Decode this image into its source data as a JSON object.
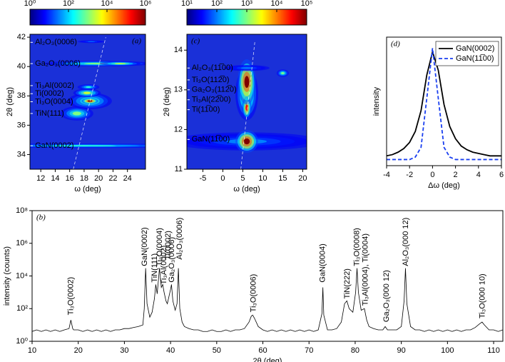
{
  "chart_data": [
    {
      "type": "heatmap",
      "panel_label": "(a)",
      "xlabel": "ω (deg)",
      "ylabel": "2θ (deg)",
      "xlim": [
        10.5,
        26.5
      ],
      "xticks": [
        12,
        14,
        16,
        18,
        20,
        22,
        24
      ],
      "ylim": [
        33,
        42.2
      ],
      "yticks": [
        34,
        36,
        38,
        40,
        42
      ],
      "colorbar": {
        "log": true,
        "lim": [
          1,
          1000000
        ],
        "ticks": [
          {
            "value": 1,
            "label": "10⁰"
          },
          {
            "value": 100,
            "label": "10²"
          },
          {
            "value": 10000,
            "label": "10⁴"
          },
          {
            "value": 1000000,
            "label": "10⁶"
          }
        ]
      },
      "spots": [
        {
          "x": 18,
          "y": 34.6,
          "wx": 9,
          "wy": 0.08,
          "value": 300
        },
        {
          "x": 17,
          "y": 36.8,
          "wx": 1.2,
          "wy": 0.25,
          "value": 1000
        },
        {
          "x": 18.8,
          "y": 37.65,
          "wx": 1.6,
          "wy": 0.3,
          "value": 1000
        },
        {
          "x": 18.8,
          "y": 37.65,
          "wx": 0.6,
          "wy": 0.1,
          "value": 1000000
        },
        {
          "x": 18.4,
          "y": 38.2,
          "wx": 1,
          "wy": 0.15,
          "value": 3000
        },
        {
          "x": 18.6,
          "y": 38.6,
          "wx": 0.8,
          "wy": 0.1,
          "value": 300
        },
        {
          "x": 20,
          "y": 40.2,
          "wx": 4,
          "wy": 0.1,
          "value": 1000
        },
        {
          "x": 23,
          "y": 40.2,
          "wx": 1.5,
          "wy": 0.08,
          "value": 3000
        },
        {
          "x": 19,
          "y": 41.7,
          "wx": 1,
          "wy": 0.05,
          "value": 30
        }
      ],
      "guide_line": {
        "x": [
          16.5,
          21
        ],
        "y": [
          33,
          42
        ]
      },
      "annotations": [
        {
          "text": "Al₂O₃(0006)",
          "x": 11.2,
          "y": 41.65,
          "color": "#f2c230"
        },
        {
          "text": "Ga₂O₃(0006)",
          "x": 11.2,
          "y": 40.2,
          "color": "#ffffff"
        },
        {
          "text": "Ti₃Al(0002)",
          "x": 11.2,
          "y": 38.7,
          "color": "#ffffff"
        },
        {
          "text": "Ti(0002)",
          "x": 11.2,
          "y": 38.15,
          "color": "#ffffff"
        },
        {
          "text": "Ti₃O(0004)",
          "x": 11.2,
          "y": 37.6,
          "color": "#ffffff"
        },
        {
          "text": "TiN(111)",
          "x": 11.2,
          "y": 36.8,
          "color": "#ffffff"
        },
        {
          "text": "GaN(0002)",
          "x": 11.2,
          "y": 34.6,
          "color": "#f2c230"
        }
      ]
    },
    {
      "type": "heatmap",
      "panel_label": "(c)",
      "xlabel": "ω (deg)",
      "ylabel": "2θ (deg)",
      "xlim": [
        -9,
        21
      ],
      "xticks": [
        -5,
        0,
        5,
        10,
        15,
        20
      ],
      "ylim": [
        11,
        14.4
      ],
      "yticks": [
        11,
        12,
        13,
        14
      ],
      "colorbar": {
        "log": true,
        "lim": [
          10,
          100000
        ],
        "ticks": [
          {
            "value": 10,
            "label": "10¹"
          },
          {
            "value": 100,
            "label": "10²"
          },
          {
            "value": 1000,
            "label": "10³"
          },
          {
            "value": 10000,
            "label": "10⁴"
          },
          {
            "value": 100000,
            "label": "10⁵"
          }
        ]
      },
      "spots": [
        {
          "x": 6,
          "y": 11.7,
          "wx": 10,
          "wy": 0.12,
          "value": 100
        },
        {
          "x": 6,
          "y": 11.7,
          "wx": 1.5,
          "wy": 0.15,
          "value": 100000
        },
        {
          "x": 6,
          "y": 12.9,
          "wx": 1.5,
          "wy": 0.35,
          "value": 3000
        },
        {
          "x": 6,
          "y": 12.55,
          "wx": 0.6,
          "wy": 0.15,
          "value": 30000
        },
        {
          "x": 6,
          "y": 13.2,
          "wx": 1.2,
          "wy": 0.3,
          "value": 100000
        },
        {
          "x": 6,
          "y": 13.55,
          "wx": 3,
          "wy": 0.04,
          "value": 100
        },
        {
          "x": 15,
          "y": 13.42,
          "wx": 0.8,
          "wy": 0.05,
          "value": 1000
        }
      ],
      "guide_line": {
        "x": [
          4.5,
          8
        ],
        "y": [
          11,
          14.2
        ]
      },
      "annotations": [
        {
          "text": "Al₂O₃(11̅00)",
          "x": -7.8,
          "y": 13.55,
          "color": "#f2c230"
        },
        {
          "text": "Ti₃O(112̅0)",
          "x": -7.8,
          "y": 13.25,
          "color": "#ffffff"
        },
        {
          "text": "Ga₂O₃(112̅0)",
          "x": -7.8,
          "y": 13.0,
          "color": "#ffffff"
        },
        {
          "text": "Ti₃Al(22̅00)",
          "x": -7.8,
          "y": 12.75,
          "color": "#ffffff"
        },
        {
          "text": "Ti(11̅00)",
          "x": -7.8,
          "y": 12.5,
          "color": "#ffffff"
        },
        {
          "text": "GaN(11̅00)",
          "x": -7.8,
          "y": 11.75,
          "color": "#f2c230"
        }
      ]
    },
    {
      "type": "line",
      "panel_label": "(d)",
      "xlabel": "Δω (deg)",
      "ylabel": "intensity",
      "xlim": [
        -4,
        6
      ],
      "xticks": [
        -4,
        -2,
        0,
        2,
        4,
        6
      ],
      "ylim": [
        0,
        1.05
      ],
      "legend": "upper-right",
      "x": [
        -4,
        -3.5,
        -3,
        -2.5,
        -2,
        -1.5,
        -1,
        -0.5,
        0,
        0.5,
        1,
        1.5,
        2,
        2.5,
        3,
        3.5,
        4,
        4.5,
        5,
        5.5,
        6
      ],
      "series": [
        {
          "name": "GaN(0002)",
          "color": "#000000",
          "dashed": false,
          "values": [
            0.08,
            0.09,
            0.11,
            0.14,
            0.19,
            0.28,
            0.45,
            0.74,
            0.93,
            0.78,
            0.5,
            0.32,
            0.22,
            0.16,
            0.13,
            0.11,
            0.1,
            0.09,
            0.08,
            0.08,
            0.08
          ]
        },
        {
          "name": "GaN(11̅00)",
          "color": "#1a3ff0",
          "dashed": true,
          "values": [
            0.05,
            0.05,
            0.05,
            0.05,
            0.05,
            0.07,
            0.15,
            0.55,
            0.96,
            0.55,
            0.15,
            0.07,
            0.05,
            0.05,
            0.05,
            0.05,
            0.05,
            0.05,
            0.05,
            0.05,
            0.05
          ]
        }
      ]
    },
    {
      "type": "line",
      "panel_label": "(b)",
      "xlabel": "2θ (deg)",
      "ylabel": "intensity (counts)",
      "xlim": [
        10,
        112
      ],
      "xticks": [
        10,
        20,
        30,
        40,
        50,
        60,
        70,
        80,
        90,
        100,
        110
      ],
      "ylog": true,
      "ylim": [
        1,
        100000000
      ],
      "yticks": [
        {
          "value": 1,
          "label": "10⁰"
        },
        {
          "value": 100,
          "label": "10²"
        },
        {
          "value": 10000,
          "label": "10⁴"
        },
        {
          "value": 1000000,
          "label": "10⁶"
        },
        {
          "value": 100000000,
          "label": "10⁸"
        }
      ],
      "x": [
        10,
        11,
        12,
        13,
        14,
        15,
        16,
        17,
        18,
        18.4,
        18.8,
        19,
        20,
        21,
        22,
        23,
        24,
        25,
        26,
        27,
        28,
        29,
        30,
        31,
        32,
        33,
        34,
        34.3,
        34.6,
        34.9,
        35.5,
        36,
        36.5,
        36.8,
        37.1,
        37.6,
        38,
        38.3,
        38.6,
        39,
        39.3,
        40,
        40.2,
        40.5,
        41,
        41.4,
        41.7,
        42,
        42.5,
        43,
        44,
        45,
        46,
        47,
        48,
        49,
        50,
        51,
        52,
        53,
        54,
        55,
        56,
        57,
        57.5,
        57.8,
        58.2,
        59,
        60,
        61,
        62,
        63,
        64,
        65,
        66,
        67,
        68,
        69,
        70,
        71,
        72,
        72.8,
        73,
        73.2,
        74,
        75,
        76,
        77,
        77.7,
        78.2,
        78.7,
        79.5,
        80.1,
        80.4,
        80.7,
        81.3,
        82,
        82.5,
        83,
        84,
        85,
        86,
        86.5,
        87,
        88,
        89,
        90,
        90.6,
        90.9,
        91.2,
        92,
        93,
        94,
        95,
        96,
        97,
        98,
        99,
        100,
        101,
        102,
        103,
        104,
        105,
        106,
        107,
        107.5,
        108,
        109,
        110,
        111,
        112
      ],
      "series": [
        {
          "name": null,
          "color": "#000000",
          "dashed": false,
          "values": [
            4,
            5,
            4,
            5,
            4,
            5,
            4,
            5,
            6,
            20,
            6,
            5,
            5,
            4,
            5,
            4,
            5,
            4,
            5,
            4,
            5,
            5,
            6,
            6,
            7,
            8,
            10,
            100,
            30000,
            200,
            30,
            60,
            400,
            3000,
            800,
            30000,
            2000,
            3000,
            1000,
            300,
            200,
            1500,
            3000,
            300,
            80,
            200,
            30000,
            100,
            15,
            8,
            6,
            5,
            5,
            4,
            4,
            5,
            4,
            4,
            5,
            4,
            5,
            5,
            6,
            15,
            35,
            40,
            25,
            8,
            5,
            4,
            5,
            4,
            5,
            4,
            5,
            4,
            5,
            4,
            5,
            4,
            5,
            50,
            2000,
            40,
            5,
            5,
            6,
            15,
            200,
            300,
            100,
            60,
            1000,
            30000,
            1000,
            80,
            100,
            20,
            8,
            6,
            5,
            5,
            8,
            5,
            5,
            5,
            8,
            300,
            30000,
            200,
            8,
            5,
            5,
            4,
            5,
            4,
            5,
            4,
            5,
            4,
            5,
            4,
            5,
            5,
            7,
            12,
            15,
            10,
            5,
            5,
            4,
            5
          ]
        }
      ],
      "annotations": [
        {
          "text": "Ti₃O(0002)",
          "x": 18.4,
          "y": 40
        },
        {
          "text": "GaN(0002)",
          "x": 34.4,
          "y": 40000
        },
        {
          "text": "TiN(111)",
          "x": 36.6,
          "y": 4000
        },
        {
          "text": "Ti₃O(0004)",
          "x": 37.7,
          "y": 40000
        },
        {
          "text": "Ti₃Al(0002)",
          "x": 38.6,
          "y": 3000
        },
        {
          "text": "Ti(0002)",
          "x": 39.5,
          "y": 100000
        },
        {
          "text": "Ga₂O₃(0006)",
          "x": 40.3,
          "y": 4000
        },
        {
          "text": "Al₂O₃(0006)",
          "x": 42.0,
          "y": 100000
        },
        {
          "text": "Ti₃O(0006)",
          "x": 58,
          "y": 60
        },
        {
          "text": "GaN(0004)",
          "x": 73,
          "y": 4000
        },
        {
          "text": "TiN(222)",
          "x": 78.3,
          "y": 400
        },
        {
          "text": "Ti₃O(0008)",
          "x": 80.4,
          "y": 40000
        },
        {
          "text": "Ti₃Al(0004), Ti(0004)",
          "x": 82.3,
          "y": 150
        },
        {
          "text": "Ga₂O₃(000 12)",
          "x": 86.8,
          "y": 15
        },
        {
          "text": "Al₂O₃(000 12)",
          "x": 91,
          "y": 40000
        },
        {
          "text": "Ti₃O(000 10)",
          "x": 107.6,
          "y": 25
        }
      ]
    }
  ]
}
